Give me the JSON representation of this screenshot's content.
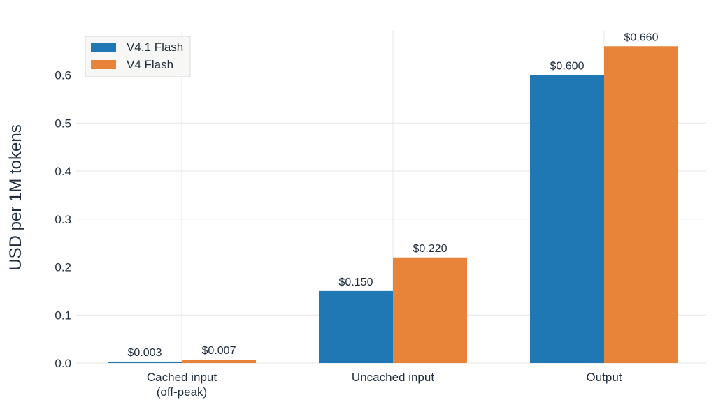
{
  "chart_data": {
    "type": "bar",
    "categories": [
      "Cached input\n(off-peak)",
      "Uncached input",
      "Output"
    ],
    "series": [
      {
        "name": "V4.1 Flash",
        "values": [
          0.003,
          0.15,
          0.6
        ],
        "labels": [
          "$0.003",
          "$0.150",
          "$0.600"
        ],
        "color": "#1f77b4"
      },
      {
        "name": "V4 Flash",
        "values": [
          0.007,
          0.22,
          0.66
        ],
        "labels": [
          "$0.007",
          "$0.220",
          "$0.660"
        ],
        "color": "#e8833a"
      }
    ],
    "ylabel": "USD per 1M tokens",
    "xlabel": "",
    "ylim": [
      0,
      0.69
    ],
    "yticks": [
      "0.0",
      "0.1",
      "0.2",
      "0.3",
      "0.4",
      "0.5",
      "0.6"
    ],
    "grid": true,
    "legend_position": "top-left"
  }
}
